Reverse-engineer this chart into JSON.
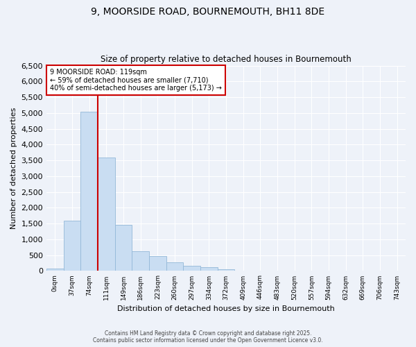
{
  "title": "9, MOORSIDE ROAD, BOURNEMOUTH, BH11 8DE",
  "subtitle": "Size of property relative to detached houses in Bournemouth",
  "xlabel": "Distribution of detached houses by size in Bournemouth",
  "ylabel": "Number of detached properties",
  "footnote1": "Contains HM Land Registry data © Crown copyright and database right 2025.",
  "footnote2": "Contains public sector information licensed under the Open Government Licence v3.0.",
  "bin_labels": [
    "0sqm",
    "37sqm",
    "74sqm",
    "111sqm",
    "149sqm",
    "186sqm",
    "223sqm",
    "260sqm",
    "297sqm",
    "334sqm",
    "372sqm",
    "409sqm",
    "446sqm",
    "483sqm",
    "520sqm",
    "557sqm",
    "594sqm",
    "632sqm",
    "669sqm",
    "706sqm",
    "743sqm"
  ],
  "bar_values": [
    65,
    1600,
    5050,
    3600,
    1450,
    620,
    480,
    270,
    160,
    110,
    50,
    15,
    5,
    3,
    2,
    1,
    0,
    0,
    0,
    0,
    0
  ],
  "bar_color": "#c9ddf2",
  "bar_edge_color": "#93b8d8",
  "vline_position": 2.5,
  "property_line_label": "9 MOORSIDE ROAD: 119sqm",
  "annotation_line1": "← 59% of detached houses are smaller (7,710)",
  "annotation_line2": "40% of semi-detached houses are larger (5,173) →",
  "annotation_box_facecolor": "#ffffff",
  "annotation_box_edgecolor": "#cc0000",
  "vline_color": "#cc0000",
  "ylim": [
    0,
    6500
  ],
  "yticks": [
    0,
    500,
    1000,
    1500,
    2000,
    2500,
    3000,
    3500,
    4000,
    4500,
    5000,
    5500,
    6000,
    6500
  ],
  "background_color": "#eef2f9",
  "plot_bg_color": "#eef2f9",
  "grid_color": "#ffffff",
  "title_fontsize": 10,
  "subtitle_fontsize": 8.5,
  "ylabel_fontsize": 8,
  "xlabel_fontsize": 8,
  "ytick_fontsize": 8,
  "xtick_fontsize": 6.5
}
